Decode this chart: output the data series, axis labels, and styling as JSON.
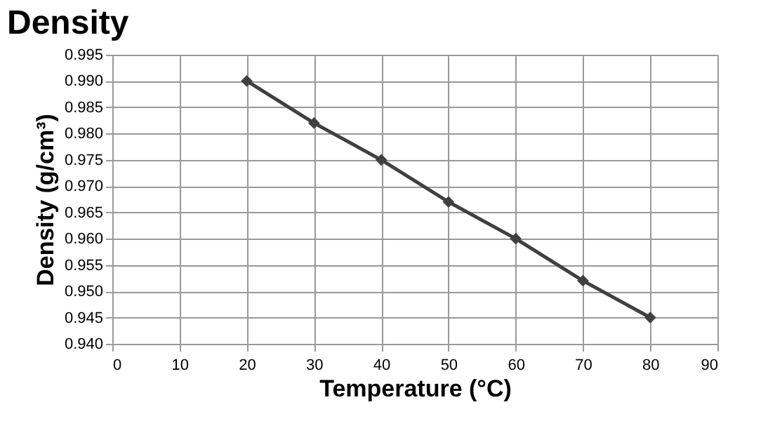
{
  "chart_data": {
    "type": "line",
    "title": "Density",
    "xlabel": "Temperature (°C)",
    "ylabel": "Density (g/cm³)",
    "x": [
      20,
      30,
      40,
      50,
      60,
      70,
      80
    ],
    "series": [
      {
        "color": "#404040",
        "values": [
          0.99,
          0.982,
          0.975,
          0.967,
          0.96,
          0.952,
          0.945
        ]
      }
    ],
    "xlim": [
      0,
      90
    ],
    "xticks": [
      0,
      10,
      20,
      30,
      40,
      50,
      60,
      70,
      80,
      90
    ],
    "ylim": [
      0.94,
      0.995
    ],
    "yticks": [
      {
        "value": 0.94,
        "label": "0.940"
      },
      {
        "value": 0.945,
        "label": "0.945"
      },
      {
        "value": 0.95,
        "label": "0.950"
      },
      {
        "value": 0.955,
        "label": "0.955"
      },
      {
        "value": 0.96,
        "label": "0.960"
      },
      {
        "value": 0.965,
        "label": "0.965"
      },
      {
        "value": 0.97,
        "label": "0.970"
      },
      {
        "value": 0.975,
        "label": "0.975"
      },
      {
        "value": 0.98,
        "label": "0.980"
      },
      {
        "value": 0.985,
        "label": "0.985"
      },
      {
        "value": 0.99,
        "label": "0.990"
      },
      {
        "value": 0.995,
        "label": "0.995"
      }
    ],
    "grid": true,
    "marker": "diamond",
    "line_style": "solid",
    "legend": false
  }
}
